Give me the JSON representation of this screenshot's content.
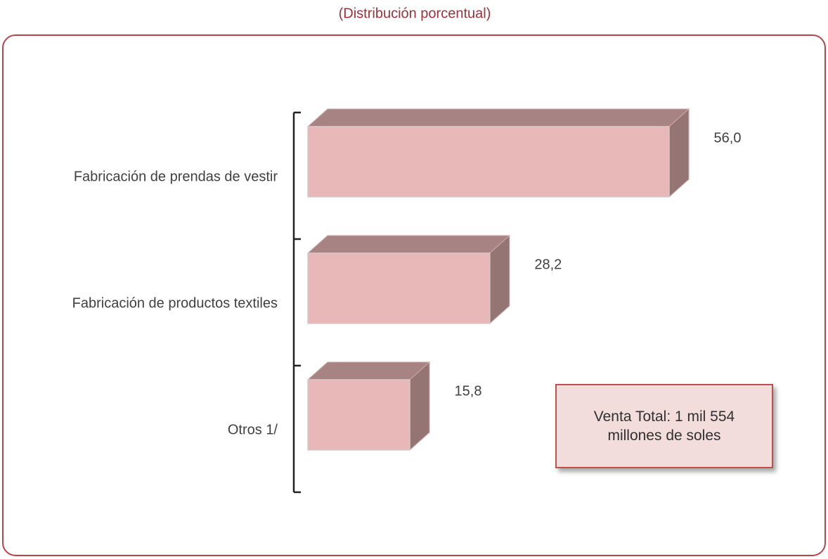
{
  "chart_data": {
    "type": "bar3d_horizontal",
    "subtitle": "(Distribución porcentual)",
    "categories": [
      "Fabricación de prendas de vestir",
      "Fabricación de productos textiles",
      "Otros 1/"
    ],
    "values": [
      56.0,
      28.2,
      15.8
    ],
    "value_labels": [
      "56,0",
      "28,2",
      "15,8"
    ],
    "color": "#e8b8b8",
    "annotation": "Venta Total: 1 mil 554 millones de soles"
  }
}
